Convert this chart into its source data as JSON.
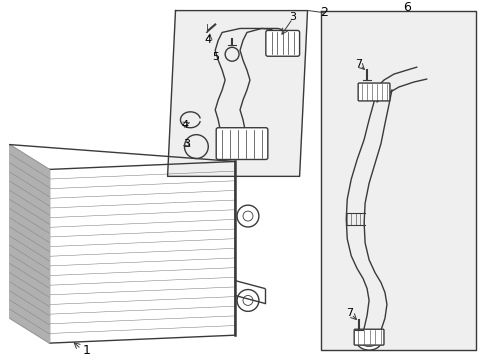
{
  "bg_color": "#ffffff",
  "line_color": "#3a3a3a",
  "box_bg": "#efefef",
  "lw": 1.0,
  "lw_thick": 1.8,
  "lw_thin": 0.5
}
